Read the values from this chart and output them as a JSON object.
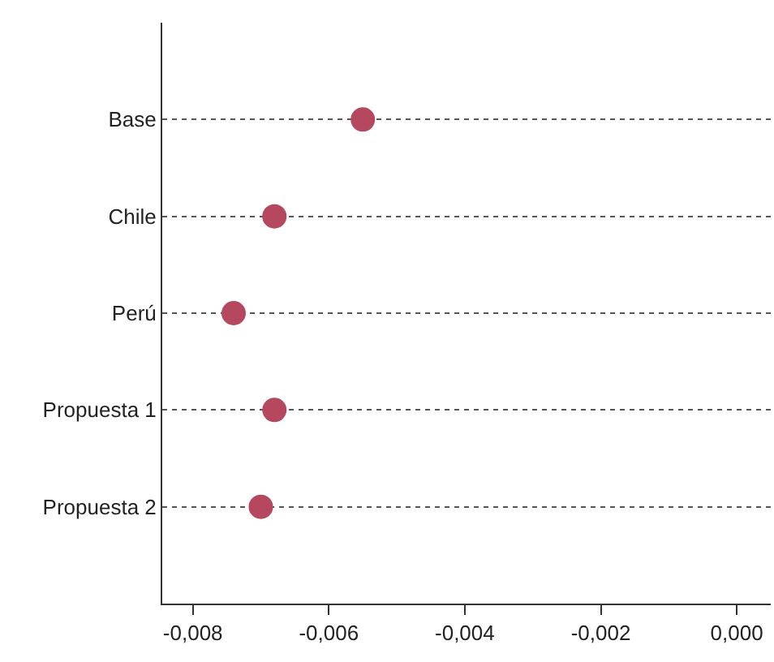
{
  "chart_data": {
    "type": "scatter",
    "orientation": "horizontal",
    "categories": [
      "Base",
      "Chile",
      "Perú",
      "Propuesta 1",
      "Propuesta 2"
    ],
    "values": [
      -0.0055,
      -0.0068,
      -0.0074,
      -0.0068,
      -0.007
    ],
    "color": "#b5485f",
    "marker": "circle",
    "grid": "y",
    "line_style": "dotted",
    "xlim": [
      -0.00845,
      0.0005
    ],
    "xticks": [
      {
        "value": -0.008,
        "label": "-0,008"
      },
      {
        "value": -0.006,
        "label": "-0,006"
      },
      {
        "value": -0.004,
        "label": "-0,004"
      },
      {
        "value": -0.002,
        "label": "-0,002"
      },
      {
        "value": 0,
        "label": "0,000"
      }
    ]
  }
}
